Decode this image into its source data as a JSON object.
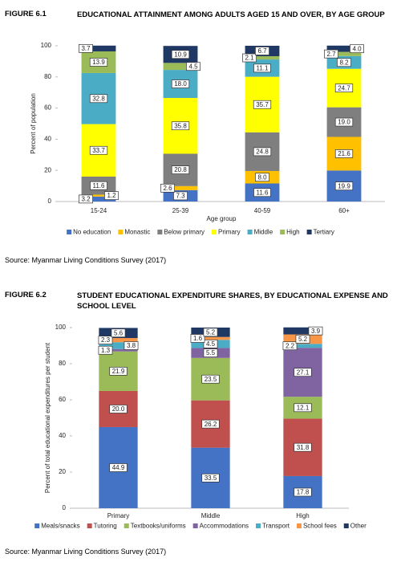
{
  "chart_data": [
    {
      "figure_label": "FIGURE 6.1",
      "title": "EDUCATIONAL ATTAINMENT AMONG ADULTS AGED 15 AND OVER, BY AGE GROUP",
      "type": "bar",
      "stacked": true,
      "categories": [
        "15-24",
        "25-39",
        "40-59",
        "60+"
      ],
      "series": [
        {
          "name": "No education",
          "color": "#4472c4",
          "values": [
            3.2,
            7.3,
            11.6,
            19.9
          ],
          "value_labels": [
            "3.2",
            "7.3",
            "11.6",
            "19.9"
          ]
        },
        {
          "name": "Monastic",
          "color": "#ffc000",
          "values": [
            1.2,
            2.6,
            8.0,
            21.6
          ],
          "value_labels": [
            "1.2",
            "2.6",
            "8.0",
            "21.6"
          ]
        },
        {
          "name": "Below primary",
          "color": "#7f7f7f",
          "values": [
            11.6,
            20.8,
            24.8,
            19.0
          ],
          "value_labels": [
            "11.6",
            "20.8",
            "24.8",
            "19.0"
          ]
        },
        {
          "name": "Primary",
          "color": "#ffff00",
          "values": [
            33.7,
            35.8,
            35.7,
            24.7
          ],
          "value_labels": [
            "33.7",
            "35.8",
            "35.7",
            "24.7"
          ]
        },
        {
          "name": "Middle",
          "color": "#4bacc6",
          "values": [
            32.8,
            18.0,
            11.1,
            8.2
          ],
          "value_labels": [
            "32.8",
            "18.0",
            "11.1",
            "8.2"
          ]
        },
        {
          "name": "High",
          "color": "#9bbb59",
          "values": [
            13.9,
            4.5,
            2.1,
            2.7
          ],
          "value_labels": [
            "13.9",
            "4.5",
            "2.1",
            "2.7"
          ]
        },
        {
          "name": "Tertiary",
          "color": "#1f3864",
          "values": [
            3.7,
            10.9,
            6.7,
            4.0
          ],
          "value_labels": [
            "3.7",
            "10.9",
            "6.7",
            "4.0"
          ]
        }
      ],
      "ylim": [
        0,
        100
      ],
      "yticks": [
        0,
        20,
        40,
        60,
        80,
        100
      ],
      "ylabel": "Percent of population",
      "xlabel": "Age group",
      "source": "Source: Myanmar Living Conditions Survey (2017)"
    },
    {
      "figure_label": "FIGURE 6.2",
      "title": "STUDENT EDUCATIONAL EXPENDITURE SHARES, BY EDUCATIONAL EXPENSE AND SCHOOL LEVEL",
      "type": "bar",
      "stacked": true,
      "categories": [
        "Primary",
        "Middle",
        "High"
      ],
      "series": [
        {
          "name": "Meals/snacks",
          "color": "#4472c4",
          "values": [
            44.9,
            33.5,
            17.8
          ],
          "value_labels": [
            "44.9",
            "33.5",
            "17.8"
          ]
        },
        {
          "name": "Tutoring",
          "color": "#c0504d",
          "values": [
            20.0,
            26.2,
            31.8
          ],
          "value_labels": [
            "20.0",
            "26.2",
            "31.8"
          ]
        },
        {
          "name": "Textbooks/uniforms",
          "color": "#9bbb59",
          "values": [
            21.9,
            23.5,
            12.1
          ],
          "value_labels": [
            "21.9",
            "23.5",
            "12.1"
          ]
        },
        {
          "name": "Accommodations",
          "color": "#8064a2",
          "values": [
            1.3,
            5.5,
            27.1
          ],
          "value_labels": [
            "1.3",
            "5.5",
            "27.1"
          ]
        },
        {
          "name": "Transport",
          "color": "#4bacc6",
          "values": [
            3.8,
            4.5,
            2.2
          ],
          "value_labels": [
            "3.8",
            "4.5",
            "2.2"
          ]
        },
        {
          "name": "School fees",
          "color": "#f79646",
          "values": [
            2.3,
            1.6,
            5.2
          ],
          "value_labels": [
            "2.3",
            "1.6",
            "5.2"
          ]
        },
        {
          "name": "Other",
          "color": "#1f3864",
          "values": [
            5.6,
            5.2,
            3.9
          ],
          "value_labels": [
            "5.6",
            "5.2",
            "3.9"
          ]
        }
      ],
      "ylim": [
        0,
        100
      ],
      "yticks": [
        0,
        20,
        40,
        60,
        80,
        100
      ],
      "ylabel": "Percent of total educational expenditures per student",
      "source": "Source: Myanmar Living Conditions Survey (2017)"
    }
  ]
}
